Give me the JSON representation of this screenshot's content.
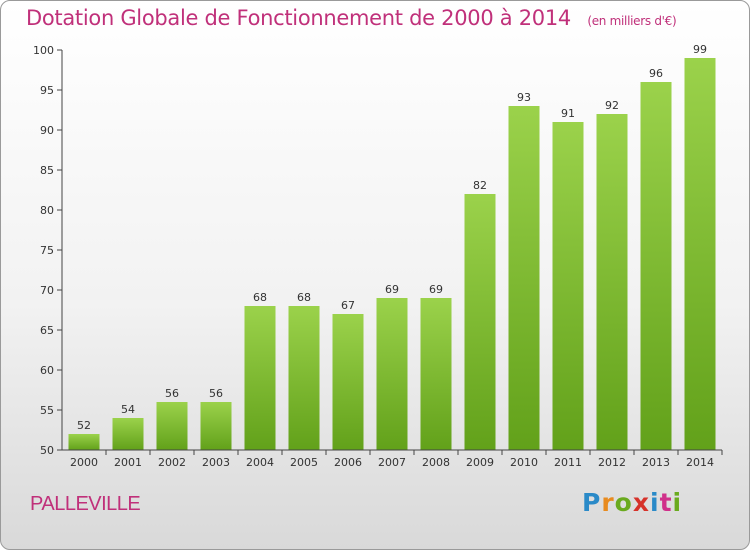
{
  "header": {
    "title": "Dotation Globale de Fonctionnement de 2000 à 2014",
    "subtitle": "(en milliers d'€)"
  },
  "footer": {
    "commune": "PALLEVILLE",
    "logo": "Proxiti"
  },
  "colors": {
    "accent": "#c0307a",
    "bar_top": "#9bd24b",
    "bar_bottom": "#62a11a"
  },
  "chart_data": {
    "type": "bar",
    "title": "Dotation Globale de Fonctionnement de 2000 à 2014",
    "subtitle": "(en milliers d'€)",
    "categories": [
      "2000",
      "2001",
      "2002",
      "2003",
      "2004",
      "2005",
      "2006",
      "2007",
      "2008",
      "2009",
      "2010",
      "2011",
      "2012",
      "2013",
      "2014"
    ],
    "values": [
      52,
      54,
      56,
      56,
      68,
      68,
      67,
      69,
      69,
      82,
      93,
      91,
      92,
      96,
      99
    ],
    "xlabel": "",
    "ylabel": "",
    "ylim": [
      50,
      100
    ],
    "yticks": [
      50,
      55,
      60,
      65,
      70,
      75,
      80,
      85,
      90,
      95,
      100
    ],
    "grid": false,
    "legend": "none",
    "data_labels": true
  }
}
